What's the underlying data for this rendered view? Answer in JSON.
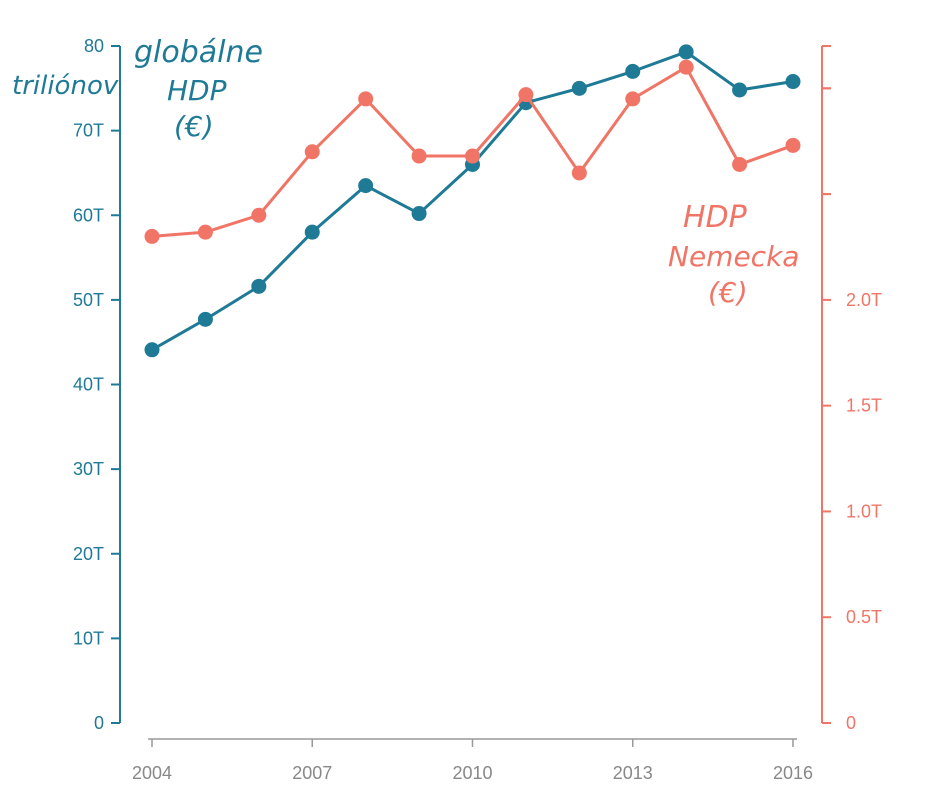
{
  "chart_data": {
    "type": "line",
    "dual_axis": true,
    "x": [
      2004,
      2005,
      2006,
      2007,
      2008,
      2009,
      2010,
      2011,
      2012,
      2013,
      2014,
      2015,
      2016
    ],
    "x_tick_labels": [
      "2004",
      "2007",
      "2010",
      "2013",
      "2016"
    ],
    "series": [
      {
        "name": "globálne HDP (€)",
        "axis": "left",
        "color": "#1f7a96",
        "values": [
          44.1,
          47.7,
          51.6,
          58.0,
          63.5,
          60.2,
          66.0,
          73.3,
          75.0,
          77.0,
          79.3,
          74.8,
          75.8
        ]
      },
      {
        "name": "HDP Nemecka (€)",
        "axis": "right",
        "color": "#f07566",
        "values": [
          2.3,
          2.32,
          2.4,
          2.7,
          2.95,
          2.68,
          2.68,
          2.97,
          2.6,
          2.95,
          3.1,
          2.64,
          2.73
        ]
      }
    ],
    "left_axis": {
      "ylim": [
        0,
        80
      ],
      "ticks": [
        0,
        10,
        20,
        30,
        40,
        50,
        60,
        70,
        80
      ],
      "tick_labels": [
        "0",
        "10T",
        "20T",
        "30T",
        "40T",
        "50T",
        "60T",
        "70T",
        "80"
      ],
      "unit_label": "triliónov",
      "title_lines": [
        "globálne",
        "HDP",
        "(€)"
      ],
      "color": "#1f7a96"
    },
    "right_axis": {
      "ylim": [
        0,
        3.2
      ],
      "ticks": [
        0,
        0.5,
        1.0,
        1.5,
        2.0,
        2.5,
        3.0
      ],
      "tick_labels": [
        "0",
        "0.5T",
        "1.0T",
        "1.5T",
        "2.0T",
        "",
        ""
      ],
      "title_lines": [
        "HDP",
        "Nemecka",
        "(€)"
      ],
      "color": "#f07566"
    },
    "x_axis_color": "#999999",
    "grid": false
  }
}
